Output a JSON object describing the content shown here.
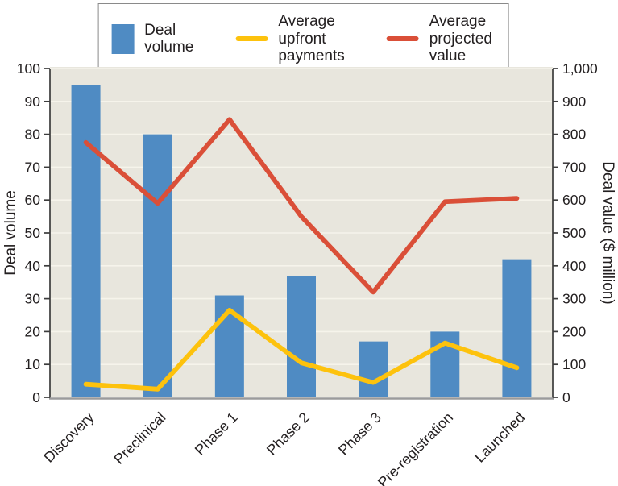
{
  "legend": {
    "items": [
      {
        "name": "deal-volume",
        "swatch": "bar",
        "color": "#4f8bc3",
        "lines": [
          "Deal",
          "volume"
        ]
      },
      {
        "name": "average-upfront-payments",
        "swatch": "line",
        "color": "#fdc20d",
        "lines": [
          "Average upfront",
          "payments"
        ]
      },
      {
        "name": "average-projected-value",
        "swatch": "line",
        "color": "#da4f38",
        "lines": [
          "Average",
          "projected value"
        ]
      }
    ]
  },
  "chart_data": {
    "type": "bar",
    "subtype": "bar-line-combo",
    "categories": [
      "Discovery",
      "Preclinical",
      "Phase 1",
      "Phase 2",
      "Phase 3",
      "Pre-registration",
      "Launched"
    ],
    "series": [
      {
        "name": "Deal volume",
        "type": "bar",
        "axis": "left",
        "color": "#4f8bc3",
        "values": [
          95,
          80,
          31,
          37,
          17,
          20,
          42
        ]
      },
      {
        "name": "Average upfront payments",
        "type": "line",
        "axis": "right",
        "color": "#fdc20d",
        "values": [
          40,
          25,
          265,
          105,
          45,
          165,
          90
        ]
      },
      {
        "name": "Average projected value",
        "type": "line",
        "axis": "right",
        "color": "#da4f38",
        "values": [
          775,
          590,
          845,
          550,
          320,
          595,
          605
        ]
      }
    ],
    "left_axis": {
      "label": "Deal volume",
      "min": 0,
      "max": 100,
      "step": 10,
      "ticks": [
        "0",
        "10",
        "20",
        "30",
        "40",
        "50",
        "60",
        "70",
        "80",
        "90",
        "100"
      ]
    },
    "right_axis": {
      "label": "Deal value ($ million)",
      "min": 0,
      "max": 1000,
      "step": 100,
      "ticks": [
        "0",
        "100",
        "200",
        "300",
        "400",
        "500",
        "600",
        "700",
        "800",
        "900",
        "1,000"
      ]
    },
    "grid": true,
    "legend_position": "top",
    "plot_background": "#e8e6dd",
    "gridline_color": "#f6f4eb",
    "axis_line_color": "#3c3c3c",
    "baseline_color": "#9b9b9b",
    "text_color": "#231f20"
  }
}
